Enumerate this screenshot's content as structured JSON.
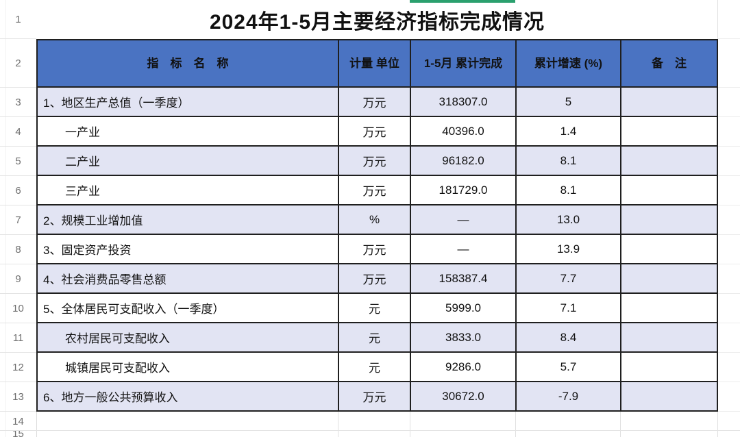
{
  "title": "2024年1-5月主要经济指标完成情况",
  "header": {
    "columns": [
      "指　标　名　称",
      "计量\n单位",
      "1-5月\n累计完成",
      "累计增速\n(%)",
      "备　注"
    ]
  },
  "row_numbers": [
    "1",
    "2",
    "3",
    "4",
    "5",
    "6",
    "7",
    "8",
    "9",
    "10",
    "11",
    "12",
    "13",
    "14",
    "15"
  ],
  "rows": [
    {
      "name": "1、地区生产总值（一季度）",
      "indent": false,
      "unit": "万元",
      "value": "318307.0",
      "growth": "5",
      "remark": ""
    },
    {
      "name": "一产业",
      "indent": true,
      "unit": "万元",
      "value": "40396.0",
      "growth": "1.4",
      "remark": ""
    },
    {
      "name": "二产业",
      "indent": true,
      "unit": "万元",
      "value": "96182.0",
      "growth": "8.1",
      "remark": ""
    },
    {
      "name": "三产业",
      "indent": true,
      "unit": "万元",
      "value": "181729.0",
      "growth": "8.1",
      "remark": ""
    },
    {
      "name": "2、规模工业增加值",
      "indent": false,
      "unit": "%",
      "value": "—",
      "growth": "13.0",
      "remark": ""
    },
    {
      "name": "3、固定资产投资",
      "indent": false,
      "unit": "万元",
      "value": "—",
      "growth": "13.9",
      "remark": ""
    },
    {
      "name": "4、社会消费品零售总额",
      "indent": false,
      "unit": "万元",
      "value": "158387.4",
      "growth": "7.7",
      "remark": ""
    },
    {
      "name": "5、全体居民可支配收入（一季度）",
      "indent": false,
      "unit": "元",
      "value": "5999.0",
      "growth": "7.1",
      "remark": ""
    },
    {
      "name": "农村居民可支配收入",
      "indent": true,
      "unit": "元",
      "value": "3833.0",
      "growth": "8.4",
      "remark": ""
    },
    {
      "name": "城镇居民可支配收入",
      "indent": true,
      "unit": "元",
      "value": "9286.0",
      "growth": "5.7",
      "remark": ""
    },
    {
      "name": "6、地方一般公共预算收入",
      "indent": false,
      "unit": "万元",
      "value": "30672.0",
      "growth": "-7.9",
      "remark": ""
    }
  ],
  "colors": {
    "header_bg": "#4a73c2",
    "header_text": "#ffffff",
    "shaded_row_bg": "#e2e4f3",
    "table_border": "#1f1f1f",
    "selection_indicator": "#2aa06e"
  }
}
